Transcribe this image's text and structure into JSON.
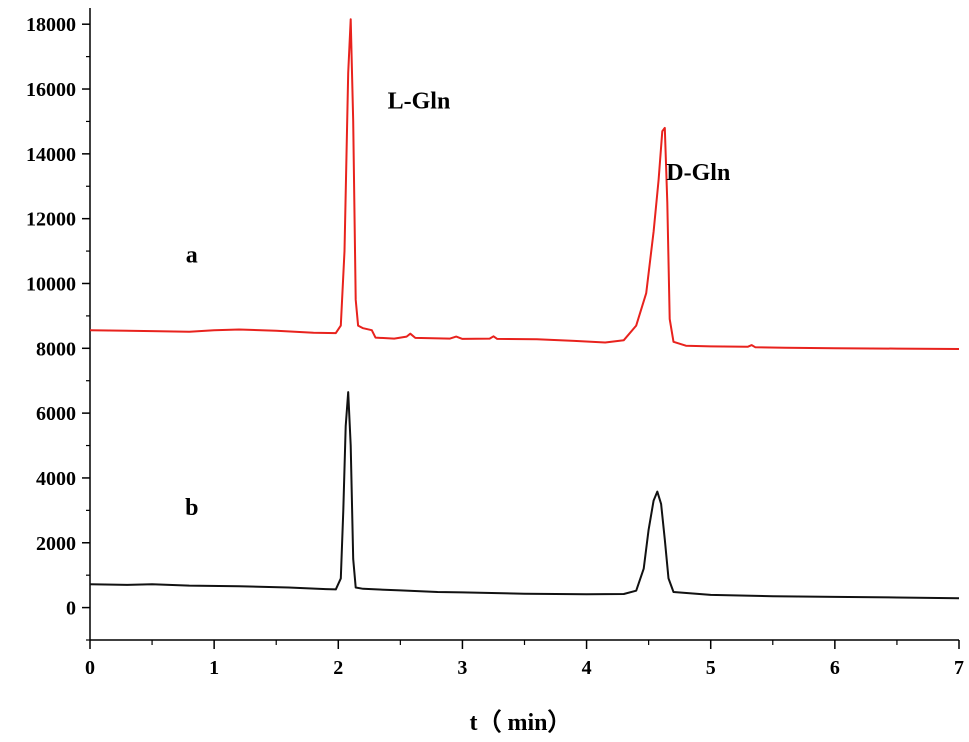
{
  "chart_data": {
    "type": "line",
    "xlabel": "t（ min）",
    "ylabel": "",
    "xlim": [
      0,
      7
    ],
    "ylim": [
      -1000,
      18500
    ],
    "x_ticks": [
      0,
      1,
      2,
      3,
      4,
      5,
      6,
      7
    ],
    "y_ticks": [
      0,
      2000,
      4000,
      6000,
      8000,
      10000,
      12000,
      14000,
      16000,
      18000
    ],
    "grid": false,
    "legend": "none",
    "series": [
      {
        "name": "a",
        "color": "#e8221d",
        "points": [
          [
            0,
            8560
          ],
          [
            0.5,
            8530
          ],
          [
            0.8,
            8510
          ],
          [
            1.0,
            8560
          ],
          [
            1.2,
            8580
          ],
          [
            1.5,
            8540
          ],
          [
            1.8,
            8480
          ],
          [
            1.98,
            8470
          ],
          [
            2.02,
            8700
          ],
          [
            2.05,
            11000
          ],
          [
            2.08,
            16500
          ],
          [
            2.1,
            18150
          ],
          [
            2.12,
            15000
          ],
          [
            2.14,
            9500
          ],
          [
            2.16,
            8700
          ],
          [
            2.2,
            8620
          ],
          [
            2.27,
            8560
          ],
          [
            2.3,
            8330
          ],
          [
            2.45,
            8300
          ],
          [
            2.55,
            8360
          ],
          [
            2.58,
            8450
          ],
          [
            2.62,
            8320
          ],
          [
            2.9,
            8300
          ],
          [
            2.95,
            8360
          ],
          [
            3.0,
            8290
          ],
          [
            3.22,
            8300
          ],
          [
            3.25,
            8370
          ],
          [
            3.28,
            8290
          ],
          [
            3.6,
            8280
          ],
          [
            3.9,
            8230
          ],
          [
            4.15,
            8180
          ],
          [
            4.3,
            8250
          ],
          [
            4.4,
            8700
          ],
          [
            4.48,
            9700
          ],
          [
            4.54,
            11600
          ],
          [
            4.58,
            13200
          ],
          [
            4.61,
            14700
          ],
          [
            4.63,
            14800
          ],
          [
            4.65,
            12500
          ],
          [
            4.67,
            8900
          ],
          [
            4.7,
            8200
          ],
          [
            4.8,
            8080
          ],
          [
            5.0,
            8060
          ],
          [
            5.3,
            8050
          ],
          [
            5.33,
            8100
          ],
          [
            5.36,
            8030
          ],
          [
            5.6,
            8020
          ],
          [
            6.0,
            8000
          ],
          [
            6.5,
            7990
          ],
          [
            7.0,
            7980
          ]
        ]
      },
      {
        "name": "b",
        "color": "#111111",
        "points": [
          [
            0,
            720
          ],
          [
            0.3,
            700
          ],
          [
            0.5,
            720
          ],
          [
            0.8,
            680
          ],
          [
            1.2,
            660
          ],
          [
            1.6,
            620
          ],
          [
            1.9,
            570
          ],
          [
            1.98,
            560
          ],
          [
            2.02,
            900
          ],
          [
            2.04,
            3000
          ],
          [
            2.06,
            5600
          ],
          [
            2.08,
            6650
          ],
          [
            2.1,
            5000
          ],
          [
            2.12,
            1500
          ],
          [
            2.14,
            620
          ],
          [
            2.2,
            580
          ],
          [
            2.5,
            530
          ],
          [
            2.8,
            480
          ],
          [
            3.0,
            470
          ],
          [
            3.5,
            430
          ],
          [
            4.0,
            410
          ],
          [
            4.3,
            420
          ],
          [
            4.4,
            520
          ],
          [
            4.46,
            1200
          ],
          [
            4.5,
            2400
          ],
          [
            4.54,
            3300
          ],
          [
            4.57,
            3580
          ],
          [
            4.6,
            3200
          ],
          [
            4.63,
            2100
          ],
          [
            4.66,
            900
          ],
          [
            4.7,
            480
          ],
          [
            5.0,
            390
          ],
          [
            5.5,
            350
          ],
          [
            6.0,
            330
          ],
          [
            6.5,
            310
          ],
          [
            7.0,
            290
          ]
        ]
      }
    ],
    "annotations": [
      {
        "text": "L-Gln",
        "x": 2.65,
        "y": 15400
      },
      {
        "text": "D-Gln",
        "x": 4.9,
        "y": 13200
      },
      {
        "text": "a",
        "x": 0.82,
        "y": 10650
      },
      {
        "text": "b",
        "x": 0.82,
        "y": 2850
      }
    ]
  }
}
